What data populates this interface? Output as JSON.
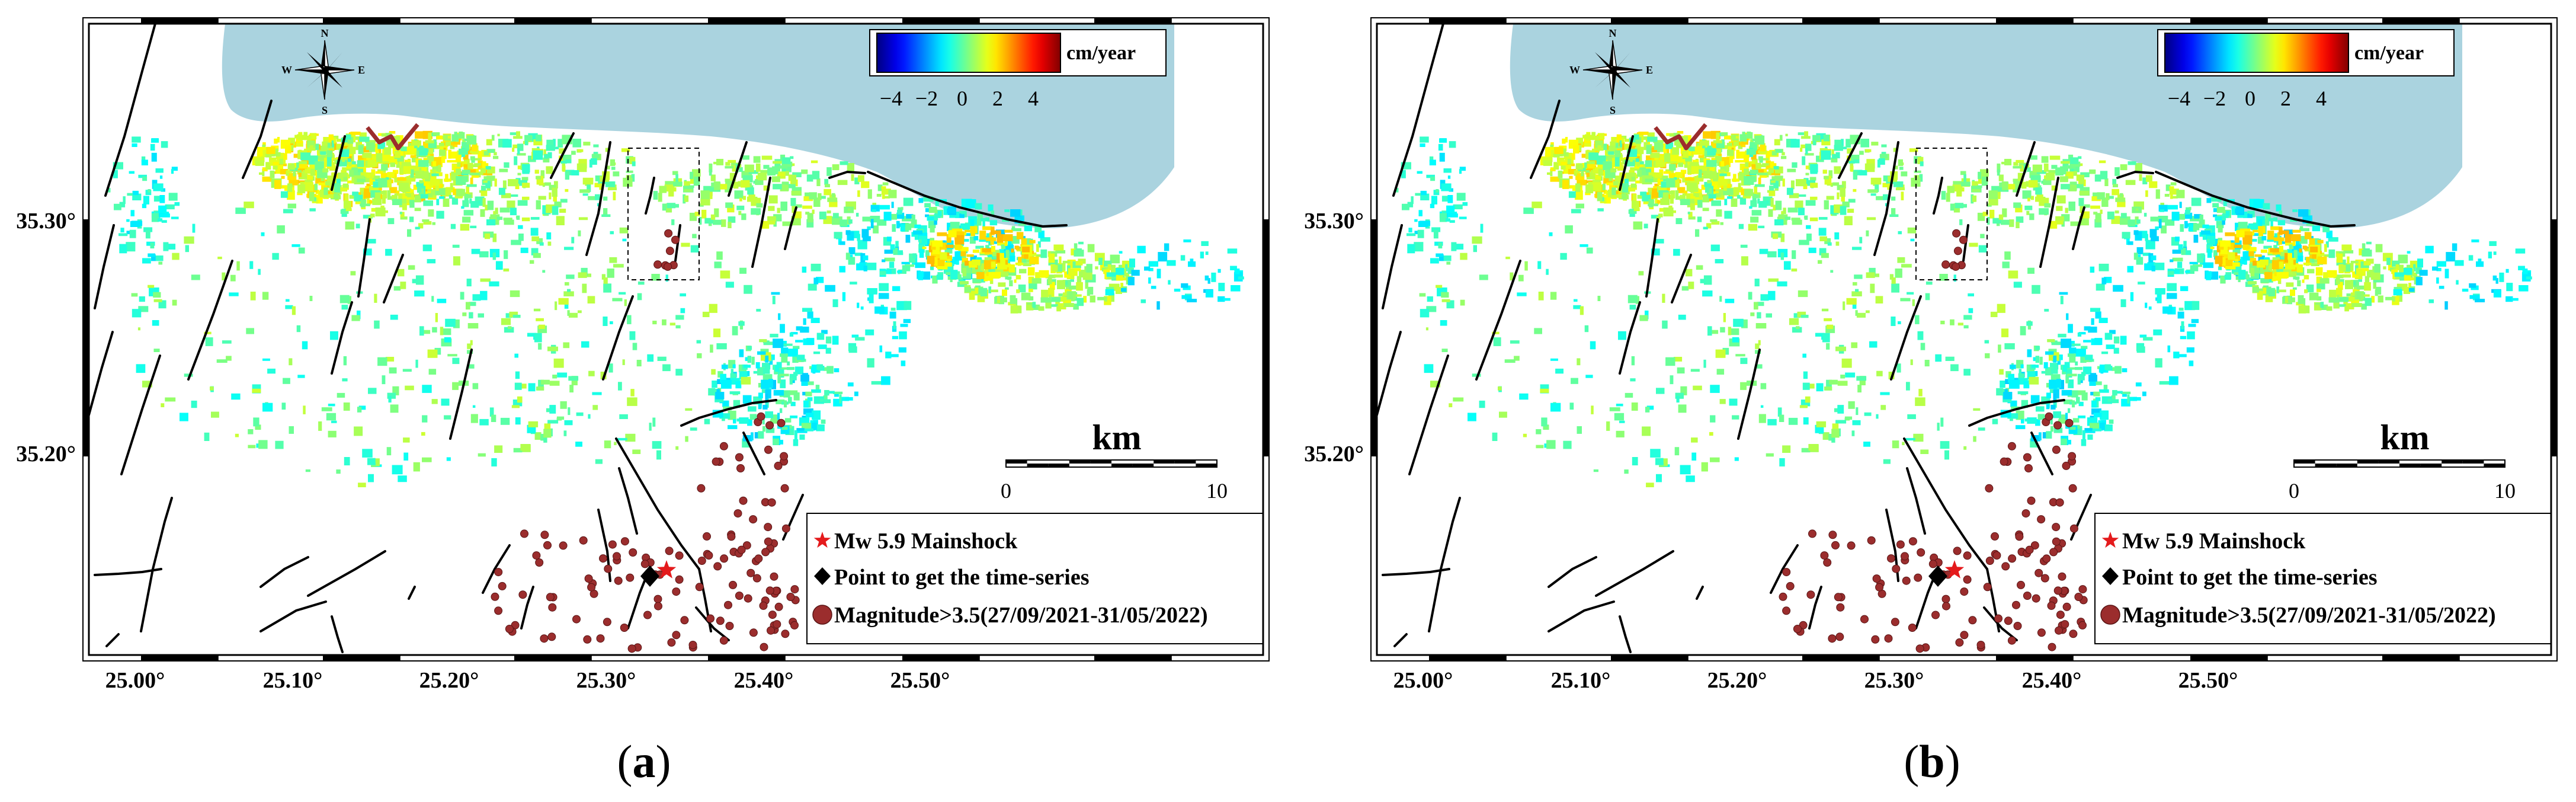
{
  "figure": {
    "panels": [
      {
        "id": "a",
        "caption_open": "(",
        "caption_letter": "a",
        "caption_close": ")"
      },
      {
        "id": "b",
        "caption_open": "(",
        "caption_letter": "b",
        "caption_close": ")"
      }
    ],
    "colorbar": {
      "unit": "cm/year",
      "ticks": [
        "−4",
        "−2",
        "0",
        "2",
        "4"
      ],
      "colormap": "jet",
      "range": [
        -5,
        5
      ]
    },
    "compass": {
      "n": "N",
      "s": "S",
      "e": "E",
      "w": "W"
    },
    "scale_bar": {
      "label": "km",
      "start": "0",
      "end": "10"
    },
    "lat_ticks": [
      "35.30°",
      "35.20°"
    ],
    "lon_ticks": [
      "25.00°",
      "25.10°",
      "25.20°",
      "25.30°",
      "25.40°",
      "25.50°"
    ],
    "legend": {
      "mainshock": "Mw 5.9 Mainshock",
      "point": "Point to get the time-series",
      "aftershocks": "Magnitude>3.5(27/09/2021-31/05/2022)"
    },
    "colors": {
      "sea": "#aad3df",
      "fault": "#000000",
      "quake": "#9b2d2d",
      "star": "#e41a1c",
      "urban_outline": "#9b2d2d"
    }
  }
}
